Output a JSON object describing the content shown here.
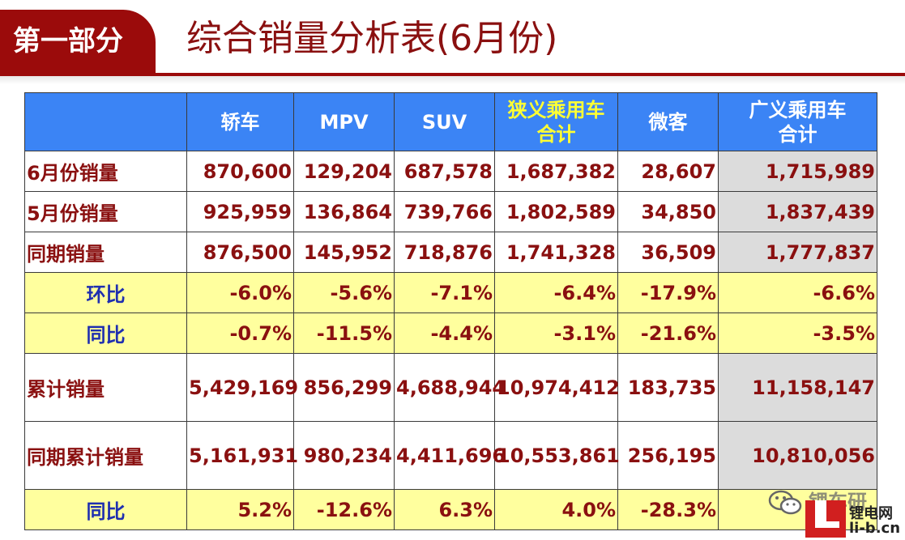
{
  "header": {
    "section_label": "第一部分",
    "title": "综合销量分析表(6月份)"
  },
  "table": {
    "columns": [
      "",
      "轿车",
      "MPV",
      "SUV",
      "狭义乘用车合计",
      "微客",
      "广义乘用车合计"
    ],
    "header_lines": {
      "c1": "轿车",
      "c2": "MPV",
      "c3": "SUV",
      "c4a": "狭义乘用车",
      "c4b": "合计",
      "c5": "微客",
      "c6a": "广义乘用车",
      "c6b": "合计"
    },
    "rows": [
      {
        "label": "6月份销量",
        "values": [
          "870,600",
          "129,204",
          "687,578",
          "1,687,382",
          "28,607",
          "1,715,989"
        ]
      },
      {
        "label": "5月份销量",
        "values": [
          "925,959",
          "136,864",
          "739,766",
          "1,802,589",
          "34,850",
          "1,837,439"
        ]
      },
      {
        "label": "同期销量",
        "values": [
          "876,500",
          "145,952",
          "718,876",
          "1,741,328",
          "36,509",
          "1,777,837"
        ]
      },
      {
        "label": "环比",
        "values": [
          "-6.0%",
          "-5.6%",
          "-7.1%",
          "-6.4%",
          "-17.9%",
          "-6.6%"
        ]
      },
      {
        "label": "同比",
        "values": [
          "-0.7%",
          "-11.5%",
          "-4.4%",
          "-3.1%",
          "-21.6%",
          "-3.5%"
        ]
      },
      {
        "label": "累计销量",
        "values": [
          "5,429,169",
          "856,299",
          "4,688,944",
          "10,974,412",
          "183,735",
          "11,158,147"
        ]
      },
      {
        "label": "同期累计销量",
        "values": [
          "5,161,931",
          "980,234",
          "4,411,696",
          "10,553,861",
          "256,195",
          "10,810,056"
        ]
      },
      {
        "label": "同比",
        "values": [
          "5.2%",
          "-12.6%",
          "6.3%",
          "4.0%",
          "-28.3%",
          ""
        ]
      }
    ]
  },
  "watermark": {
    "top_text": "锂车研",
    "name": "锂电网",
    "url": "li-b.cn",
    "icon": "wechat-icon"
  },
  "colors": {
    "brand_red": "#9b0b0b",
    "header_blue": "#3b84f5",
    "highlight_yellow": "#ffff9e",
    "total_gray": "#dcdcdc"
  }
}
